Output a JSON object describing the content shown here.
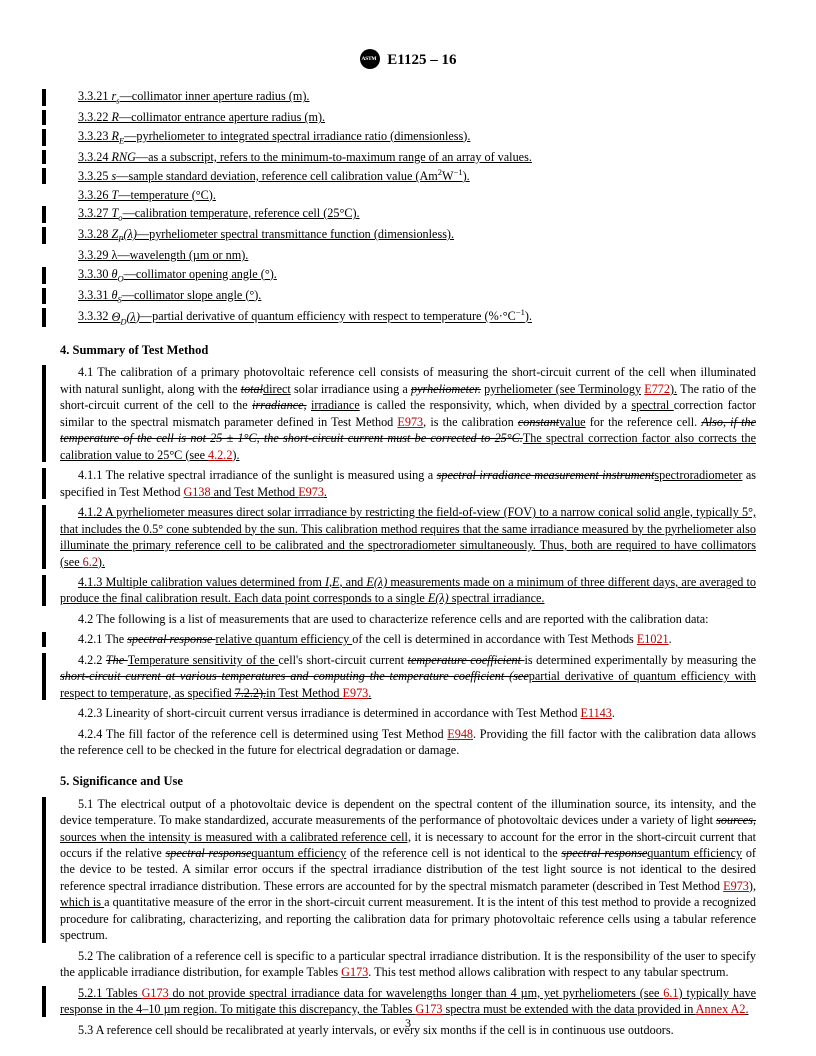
{
  "header": {
    "designation": "E1125 – 16"
  },
  "definitions": [
    {
      "n": "3.3.21",
      "sym": "<i>r<sub>s</sub></i>",
      "txt": "—collimator inner aperture radius (m).",
      "bar": true
    },
    {
      "n": "3.3.22",
      "sym": "<i>R</i>",
      "txt": "—collimator entrance aperture radius (m).",
      "bar": true
    },
    {
      "n": "3.3.23",
      "sym": "<i>R<sub>E</sub></i>",
      "txt": "—pyrheliometer to integrated spectral irradiance ratio (dimensionless).",
      "bar": true
    },
    {
      "n": "3.3.24",
      "sym": "<i>RNG</i>",
      "txt": "—as a subscript, refers to the minimum-to-maximum range of an array of values.",
      "bar": true
    },
    {
      "n": "3.3.25",
      "sym": "<i>s</i>",
      "txt": "—sample standard deviation, reference cell calibration value (Am<sup>2</sup>W<sup>−1</sup>).",
      "bar": true
    },
    {
      "n": "3.3.26",
      "sym": "<i>T</i>",
      "txt": "—temperature (°C).",
      "bar": false
    },
    {
      "n": "3.3.27",
      "sym": "<i>T<sub>o</sub></i>",
      "txt": "—calibration temperature, reference cell (25°C).",
      "bar": true
    },
    {
      "n": "3.3.28",
      "sym": "<i>Z<sub>P</sub>(λ)</i>",
      "txt": "—pyrheliometer spectral transmittance function (dimensionless).",
      "bar": true
    },
    {
      "n": "3.3.29",
      "sym": "λ",
      "txt": "—wavelength (µm or nm).",
      "bar": false
    },
    {
      "n": "3.3.30",
      "sym": "<i>θ<sub>O</sub></i>",
      "txt": "—collimator opening angle (°).",
      "bar": true
    },
    {
      "n": "3.3.31",
      "sym": "<i>θ<sub>S</sub></i>",
      "txt": "—collimator slope angle (°).",
      "bar": true
    },
    {
      "n": "3.3.32",
      "sym": "<i>Θ<sub>D</sub>(λ)</i>",
      "txt": "—partial derivative of quantum efficiency with respect to temperature (%·°C<sup>−1</sup>).",
      "bar": true
    }
  ],
  "sections": {
    "s4": {
      "title": "4. Summary of Test Method"
    },
    "s5": {
      "title": "5. Significance and Use"
    }
  },
  "p41_segs": [
    {
      "t": "4.1 The calibration of a primary photovoltaic reference cell consists of measuring the short-circuit current of the cell when illuminated with natural sunlight, along with the "
    },
    {
      "t": "total",
      "d": "strike"
    },
    {
      "t": "direct",
      "d": "ul"
    },
    {
      "t": " solar irradiance using a "
    },
    {
      "t": "pyrheliometer.",
      "d": "strike"
    },
    {
      "t": " "
    },
    {
      "t": "pyrheliometer (see Terminology",
      "d": "ul"
    },
    {
      "t": " "
    },
    {
      "t": "E772",
      "d": "red"
    },
    {
      "t": ").",
      "d": "ul"
    },
    {
      "t": " The ratio of the short-circuit current of the cell to the "
    },
    {
      "t": "irradiance,",
      "d": "strike"
    },
    {
      "t": " "
    },
    {
      "t": "irradiance",
      "d": "ul"
    },
    {
      "t": " is called the responsivity, which, when divided by a "
    },
    {
      "t": "spectral ",
      "d": "ul"
    },
    {
      "t": "correction factor similar to the spectral mismatch parameter defined in Test Method "
    },
    {
      "t": "E973",
      "d": "red"
    },
    {
      "t": ", is the calibration "
    },
    {
      "t": "constant",
      "d": "strike"
    },
    {
      "t": "value",
      "d": "ul"
    },
    {
      "t": " for the reference cell. "
    },
    {
      "t": "Also, if the temperature of the cell is not 25 ± 1°C, the short-circuit current must be corrected to 25°C.",
      "d": "strike"
    },
    {
      "t": "The spectral correction factor also corrects the calibration value to 25°C (see ",
      "d": "ul"
    },
    {
      "t": "4.2.2",
      "d": "red"
    },
    {
      "t": ").",
      "d": "ul"
    }
  ],
  "p411_segs": [
    {
      "t": "4.1.1 The relative spectral irradiance of the sunlight is measured using a "
    },
    {
      "t": "spectral irradiance measurement instrument",
      "d": "strike"
    },
    {
      "t": "spectroradiometer",
      "d": "ul"
    },
    {
      "t": " as specified in Test Method "
    },
    {
      "t": "G138",
      "d": "red"
    },
    {
      "t": " and Test Method ",
      "d": "ul"
    },
    {
      "t": "E973",
      "d": "red"
    },
    {
      "t": ".",
      "d": "ul"
    }
  ],
  "p412_segs": [
    {
      "t": "4.1.2 A pyrheliometer measures direct solar irrradiance by restricting the field-of-view (FOV) to a narrow conical solid angle, typically 5°, that includes the 0.5° cone subtended by the sun. This calibration method requires that the same irradiance measured by the pyrheliometer also illuminate the primary reference cell to be calibrated and the spectroradiometer simultaneously. Thus, both are required to have collimators (see ",
      "d": "ul"
    },
    {
      "t": "6.2",
      "d": "red"
    },
    {
      "t": ").",
      "d": "ul"
    }
  ],
  "p413_segs": [
    {
      "t": "4.1.3 Multiple calibration values determined from ",
      "d": "ul"
    },
    {
      "t": "I",
      "d": "uli"
    },
    {
      "t": ",",
      "d": "ul"
    },
    {
      "t": "E",
      "d": "uli"
    },
    {
      "t": ", and ",
      "d": "ul"
    },
    {
      "t": "E(λ)",
      "d": "uli"
    },
    {
      "t": " measurements made on a minimum of three different days, are averaged to produce the final calibration result. Each data point corresponds to a single ",
      "d": "ul"
    },
    {
      "t": "E(λ)",
      "d": "uli"
    },
    {
      "t": " spectral irradiance.",
      "d": "ul"
    }
  ],
  "p42": "4.2 The following is a list of measurements that are used to characterize reference cells and are reported with the calibration data:",
  "p421_segs": [
    {
      "t": "4.2.1 The "
    },
    {
      "t": "spectral response ",
      "d": "strike"
    },
    {
      "t": "relative quantum efficiency ",
      "d": "ul"
    },
    {
      "t": "of the cell is determined in accordance with Test Methods "
    },
    {
      "t": "E1021",
      "d": "red"
    },
    {
      "t": "."
    }
  ],
  "p422_segs": [
    {
      "t": "4.2.2 "
    },
    {
      "t": "The ",
      "d": "strike"
    },
    {
      "t": "Temperature sensitivity of the ",
      "d": "ul"
    },
    {
      "t": "cell's short-circuit current "
    },
    {
      "t": "temperature coefficient ",
      "d": "strike"
    },
    {
      "t": "is determined experimentally by measuring the "
    },
    {
      "t": "short-circuit current at various temperatures and computing the temperature coefficient (see",
      "d": "strike"
    },
    {
      "t": "partial derivative of quantum efficiency with respect to temperature, as specified ",
      "d": "ul"
    },
    {
      "t": "7.2.2).",
      "d": "both"
    },
    {
      "t": "in Test Method ",
      "d": "ul"
    },
    {
      "t": "E973",
      "d": "red"
    },
    {
      "t": ".",
      "d": "ul"
    }
  ],
  "p423_segs": [
    {
      "t": "4.2.3 Linearity of short-circuit current versus irradiance is determined in accordance with Test Method "
    },
    {
      "t": "E1143",
      "d": "red"
    },
    {
      "t": "."
    }
  ],
  "p424_segs": [
    {
      "t": "4.2.4 The fill factor of the reference cell is determined using Test Method "
    },
    {
      "t": "E948",
      "d": "red"
    },
    {
      "t": ". Providing the fill factor with the calibration data allows the reference cell to be checked in the future for electrical degradation or damage."
    }
  ],
  "p51_segs": [
    {
      "t": "5.1 The electrical output of a photovoltaic device is dependent on the spectral content of the illumination source, its intensity, and the device temperature. To make standardized, accurate measurements of the performance of photovoltaic devices under a variety of light "
    },
    {
      "t": "sources,",
      "d": "strike"
    },
    {
      "t": " "
    },
    {
      "t": "sources when the intensity is measured with a calibrated reference cell,",
      "d": "ul"
    },
    {
      "t": " it is necessary to account for the error in the short-circuit current that occurs if the relative "
    },
    {
      "t": "spectral response",
      "d": "strike"
    },
    {
      "t": "quantum efficiency",
      "d": "ul"
    },
    {
      "t": " of the reference cell is not identical to the "
    },
    {
      "t": "spectral response",
      "d": "strike"
    },
    {
      "t": "quantum efficiency",
      "d": "ul"
    },
    {
      "t": " of the device to be tested. A similar error occurs if the spectral irradiance distribution of the test light source is not identical to the desired reference spectral irradiance distribution. These errors are accounted for by the spectral mismatch parameter (described in Test Method "
    },
    {
      "t": "E973",
      "d": "red"
    },
    {
      "t": "), "
    },
    {
      "t": "which is ",
      "d": "ul"
    },
    {
      "t": "a quantitative measure of the error in the short-circuit current measurement. It is the intent of this test method to provide a recognized procedure for calibrating, characterizing, and reporting the calibration data for primary photovoltaic reference cells using a tabular reference spectrum."
    }
  ],
  "p52_segs": [
    {
      "t": "5.2 The calibration of a reference cell is specific to a particular spectral irradiance distribution. It is the responsibility of the user to specify the applicable irradiance distribution, for example Tables "
    },
    {
      "t": "G173",
      "d": "red"
    },
    {
      "t": ". This test method allows calibration with respect to any tabular spectrum."
    }
  ],
  "p521_segs": [
    {
      "t": "5.2.1 Tables ",
      "d": "ul"
    },
    {
      "t": "G173",
      "d": "red"
    },
    {
      "t": " do not provide spectral irradiance data for wavelengths longer than 4 µm, yet pyrheliometers (see ",
      "d": "ul"
    },
    {
      "t": "6.1",
      "d": "red"
    },
    {
      "t": ") typically have response in the 4–10 µm region. To mitigate this discrepancy, the Tables ",
      "d": "ul"
    },
    {
      "t": "G173",
      "d": "red"
    },
    {
      "t": " spectra must be extended with the data provided in ",
      "d": "ul"
    },
    {
      "t": "Annex A2",
      "d": "red"
    },
    {
      "t": ".",
      "d": "ul"
    }
  ],
  "p53": "5.3 A reference cell should be recalibrated at yearly intervals, or every six months if the cell is in continuous use outdoors.",
  "pageNumber": "3"
}
